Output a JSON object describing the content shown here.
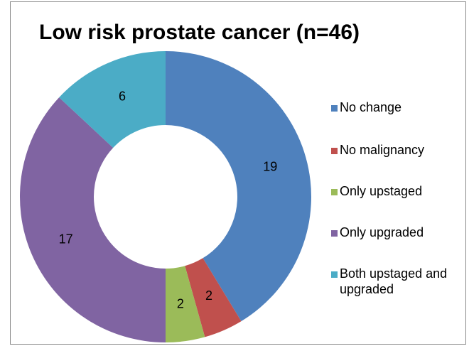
{
  "chart_data": {
    "type": "donut",
    "title": "Low risk prostate cancer (n=46)",
    "categories": [
      "No change",
      "No malignancy",
      "Only upstaged",
      "Only upgraded",
      "Both upstaged and upgraded"
    ],
    "values": [
      19,
      2,
      2,
      17,
      6
    ],
    "colors": [
      "#4f81bd",
      "#c0504d",
      "#9bbb59",
      "#8064a2",
      "#4bacc6"
    ],
    "legend": "right"
  }
}
